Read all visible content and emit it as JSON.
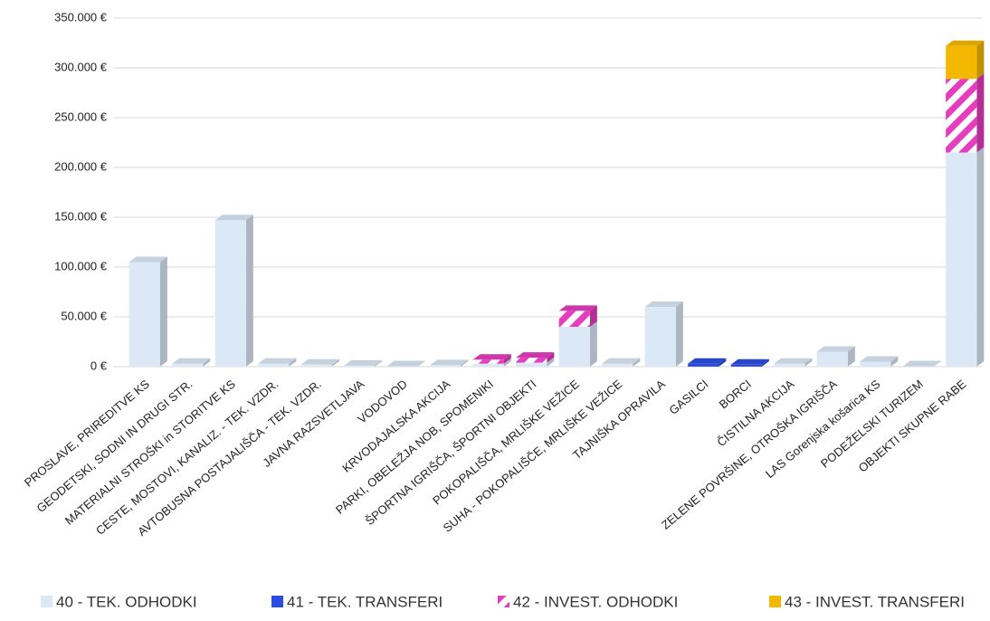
{
  "chart_data": {
    "type": "bar",
    "stacked": true,
    "grid": true,
    "legend": "bottom",
    "categories": [
      "PROSLAVE, PRIREDITVE KS",
      "GEODETSKI, SODNI IN DRUGI STR.",
      "MATERIALNI STROŠKI in  STORITVE KS",
      "CESTE, MOSTOVI, KANALIZ. - TEK. VZDR.",
      "AVTOBUSNA POSTAJALIŠČA - TEK. VZDR.",
      "JAVNA RAZSVETLJAVA",
      "VODOVOD",
      "KRVODAJALSKA AKCIJA",
      "PARKI, OBELEŽJA NOB, SPOMENIKI",
      "ŠPORTNA IGRIŠČA, ŠPORTNI OBJEKTI",
      "POKOPALIŠČA, MRLIŠKE VEŽICE",
      "SUHA - POKOPALIŠČE, MRLIŠKE VEŽICE",
      "TAJNIŠKA OPRAVILA",
      "GASILCI",
      "BORCI",
      "ČISTILNA AKCIJA",
      "ZELENE POVRŠINE, OTROŠKA IGRIŠČA",
      "LAS Gorenjska košarica KS",
      "PODEŽELSKI TURIZEM",
      "OBJEKTI SKUPNE RABE"
    ],
    "series": [
      {
        "name": "40 - TEK. ODHODKI",
        "color": "#dbe9f7",
        "values": [
          105000,
          3000,
          147000,
          3000,
          2000,
          1000,
          500,
          1500,
          3000,
          4000,
          40000,
          3000,
          60000,
          0,
          0,
          3000,
          15000,
          5000,
          500,
          215000
        ]
      },
      {
        "name": "41 - TEK. TRANSFERI",
        "color": "#2b4ee0",
        "values": [
          0,
          0,
          0,
          0,
          0,
          0,
          0,
          0,
          0,
          0,
          0,
          0,
          0,
          3000,
          2000,
          0,
          0,
          0,
          0,
          0
        ]
      },
      {
        "name": "42 - INVEST. ODHODKI",
        "color": "#e63cbf",
        "hatch": true,
        "values": [
          0,
          0,
          0,
          0,
          0,
          0,
          0,
          0,
          4000,
          5000,
          16000,
          0,
          0,
          0,
          0,
          0,
          0,
          0,
          0,
          74000
        ]
      },
      {
        "name": "43 - INVEST. TRANSFERI",
        "color": "#f5b800",
        "values": [
          0,
          0,
          0,
          0,
          0,
          0,
          0,
          0,
          0,
          0,
          0,
          0,
          0,
          0,
          0,
          0,
          0,
          0,
          0,
          33000
        ]
      }
    ],
    "ylim": [
      0,
      350000
    ],
    "yticks": [
      {
        "value": 0,
        "label": "0 €"
      },
      {
        "value": 50000,
        "label": "50.000 €"
      },
      {
        "value": 100000,
        "label": "100.000 €"
      },
      {
        "value": 150000,
        "label": "150.000 €"
      },
      {
        "value": 200000,
        "label": "200.000 €"
      },
      {
        "value": 250000,
        "label": "250.000 €"
      },
      {
        "value": 300000,
        "label": "300.000 €"
      },
      {
        "value": 350000,
        "label": "350.000 €"
      }
    ]
  }
}
